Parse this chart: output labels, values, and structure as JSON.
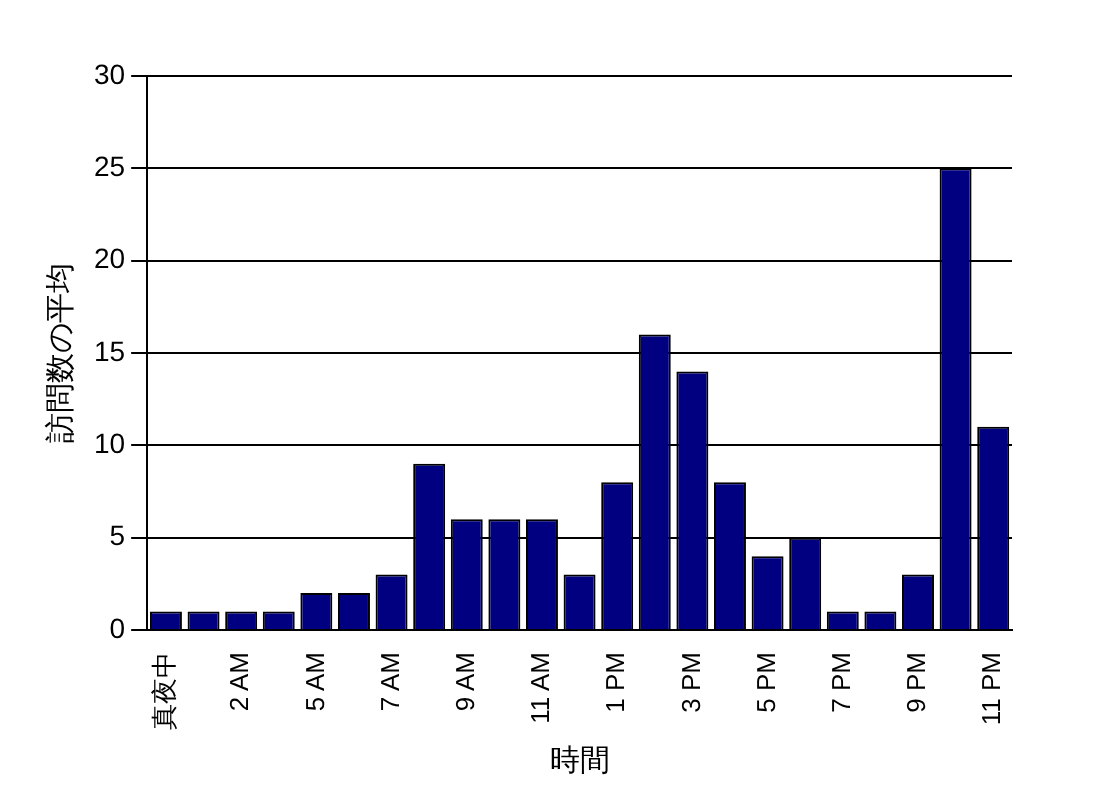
{
  "chart_data": {
    "type": "bar",
    "xlabel": "時間",
    "ylabel": "訪問数の平均",
    "categories": [
      "真夜中",
      null,
      "2 AM",
      null,
      "5 AM",
      null,
      "7 AM",
      null,
      "9 AM",
      null,
      "11 AM",
      null,
      "1 PM",
      null,
      "3 PM",
      null,
      "5 PM",
      null,
      "7 PM",
      null,
      "9 PM",
      null,
      "11 PM"
    ],
    "values": [
      1,
      1,
      1,
      1,
      2,
      2,
      3,
      9,
      6,
      6,
      6,
      3,
      8,
      16,
      14,
      8,
      4,
      5,
      1,
      1,
      3,
      25,
      11
    ],
    "color": "#000080",
    "ylim": [
      0,
      30
    ],
    "yticks": [
      0,
      5,
      10,
      15,
      20,
      25,
      30
    ],
    "grid": "y",
    "legend": false
  }
}
